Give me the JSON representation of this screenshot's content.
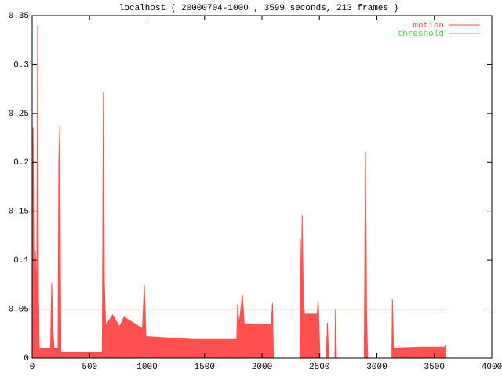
{
  "chart_data": {
    "type": "line",
    "title": "localhost ( 20000704-1000 , 3599 seconds, 213 frames )",
    "legend": "top-right",
    "xlim": [
      0,
      4000
    ],
    "xticks": [
      0,
      500,
      1000,
      1500,
      2000,
      2500,
      3000,
      3500,
      4000
    ],
    "ylim": [
      0,
      0.35
    ],
    "yticks": [
      0,
      0.05,
      0.1,
      0.15,
      0.2,
      0.25,
      0.3,
      0.35
    ],
    "grid": false,
    "series": [
      {
        "name": "motion",
        "color": "#ff5050",
        "fill": true,
        "x": [
          0,
          8,
          14,
          20,
          28,
          40,
          48,
          55,
          62,
          80,
          160,
          170,
          178,
          190,
          225,
          232,
          240,
          250,
          610,
          620,
          628,
          640,
          700,
          760,
          800,
          960,
          976,
          990,
          1400,
          1780,
          1788,
          1800,
          1830,
          1845,
          2080,
          2092,
          2100,
          2330,
          2334,
          2342,
          2350,
          2360,
          2370,
          2480,
          2490,
          2505,
          2515,
          2560,
          2570,
          2580,
          2635,
          2640,
          2648,
          2890,
          2901,
          2910,
          2920,
          3130,
          3135,
          3145,
          3400,
          3590,
          3599
        ],
        "values": [
          0,
          0.236,
          0.12,
          0.065,
          0.11,
          0.06,
          0.34,
          0.065,
          0.01,
          0.01,
          0.01,
          0.077,
          0.035,
          0.01,
          0.01,
          0.197,
          0.237,
          0.006,
          0.006,
          0.272,
          0.077,
          0.033,
          0.044,
          0.032,
          0.042,
          0.03,
          0.075,
          0.022,
          0.019,
          0.019,
          0.055,
          0.034,
          0.064,
          0.035,
          0.034,
          0.056,
          0,
          0,
          0.122,
          0.065,
          0.146,
          0.062,
          0.045,
          0.045,
          0.058,
          0,
          0,
          0,
          0.036,
          0,
          0,
          0.05,
          0,
          0,
          0.211,
          0.05,
          0,
          0,
          0.06,
          0.01,
          0.011,
          0.011,
          0.013
        ]
      },
      {
        "name": "threshold",
        "color": "#40e040",
        "fill": false,
        "x": [
          0,
          3599
        ],
        "values": [
          0.05,
          0.05
        ]
      }
    ]
  }
}
